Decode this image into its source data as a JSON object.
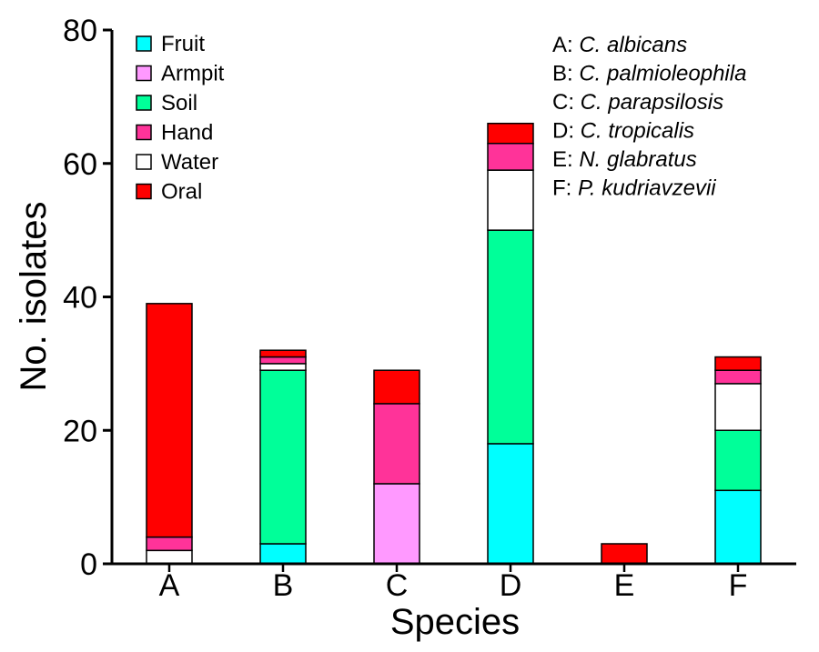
{
  "chart_data": {
    "type": "bar",
    "stacked": true,
    "categories": [
      "A",
      "B",
      "C",
      "D",
      "E",
      "F"
    ],
    "series": [
      {
        "name": "Fruit",
        "color": "#00ffff",
        "values": [
          0,
          3,
          0,
          18,
          0,
          11
        ]
      },
      {
        "name": "Armpit",
        "color": "#ff99ff",
        "values": [
          0,
          0,
          12,
          0,
          0,
          0
        ]
      },
      {
        "name": "Soil",
        "color": "#00ff99",
        "values": [
          0,
          26,
          0,
          32,
          0,
          9
        ]
      },
      {
        "name": "Hand",
        "color": "#ff3399",
        "values": [
          2,
          1,
          12,
          4,
          0,
          2
        ]
      },
      {
        "name": "Water",
        "color": "#ffffff",
        "values": [
          2,
          1,
          0,
          9,
          0,
          7
        ]
      },
      {
        "name": "Oral",
        "color": "#ff0000",
        "values": [
          35,
          1,
          5,
          3,
          3,
          2
        ]
      }
    ],
    "stack_order": [
      "Fruit",
      "Armpit",
      "Soil",
      "Water",
      "Hand",
      "Oral"
    ],
    "legend_order": [
      "Fruit",
      "Armpit",
      "Soil",
      "Hand",
      "Water",
      "Oral"
    ],
    "xlabel": "Species",
    "ylabel": "No. isolates",
    "ylim": [
      0,
      80
    ],
    "yticks": [
      "0",
      "20",
      "40",
      "60",
      "80"
    ],
    "legend_position": "top-left",
    "grid": false,
    "species_key": [
      {
        "letter": "A:",
        "name": "C. albicans"
      },
      {
        "letter": "B:",
        "name": "C. palmioleophila"
      },
      {
        "letter": "C:",
        "name": "C. parapsilosis"
      },
      {
        "letter": "D:",
        "name": "C. tropicalis"
      },
      {
        "letter": "E:",
        "name": "N. glabratus"
      },
      {
        "letter": "F:",
        "name": "P. kudriavzevii"
      }
    ]
  }
}
